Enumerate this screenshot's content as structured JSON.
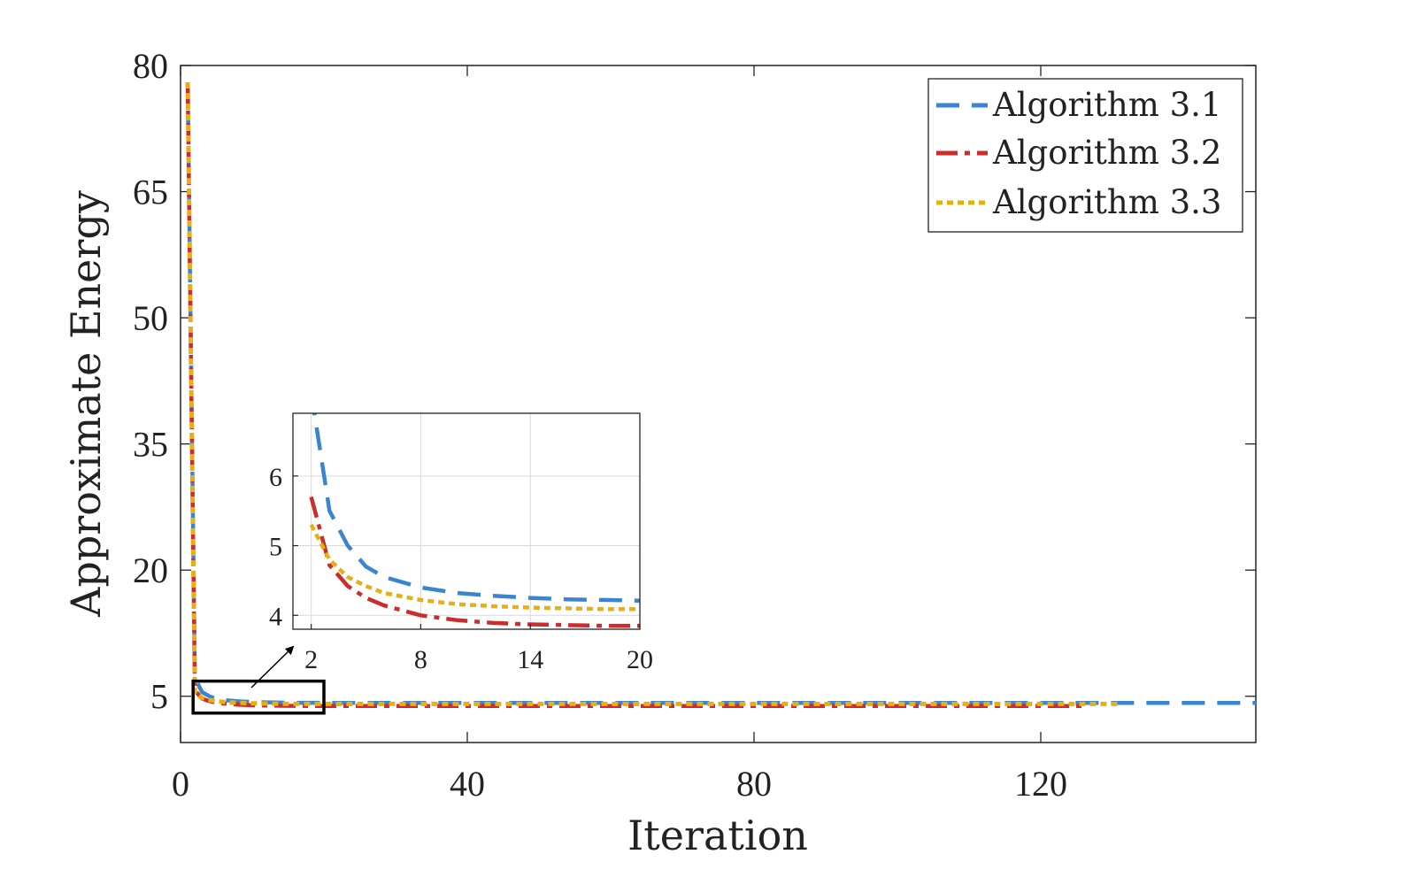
{
  "colors": {
    "series_1": "#3a84d0",
    "series_2": "#cc2c2c",
    "series_3": "#e6b012",
    "axes": "#222222",
    "grid": "#d9d9d9"
  },
  "chart_data": {
    "type": "line",
    "xlabel": "Iteration",
    "ylabel": "Approximate Energy",
    "xlim": [
      0,
      150
    ],
    "ylim": [
      -0.5,
      80
    ],
    "xticks": [
      0,
      40,
      80,
      120
    ],
    "yticks": [
      5,
      20,
      35,
      50,
      65,
      80
    ],
    "legend_position": "top-right",
    "legend_entries": [
      "Algorithm 3.1",
      "Algorithm 3.2",
      "Algorithm 3.3"
    ],
    "series": [
      {
        "name": "Algorithm 3.1",
        "style": "dashed",
        "x": [
          1,
          2,
          3,
          4,
          5,
          6,
          8,
          10,
          12,
          14,
          16,
          18,
          20,
          40,
          80,
          120,
          150
        ],
        "values": [
          78.0,
          7.2,
          5.5,
          5.0,
          4.7,
          4.55,
          4.4,
          4.32,
          4.28,
          4.25,
          4.23,
          4.22,
          4.21,
          4.2,
          4.2,
          4.2,
          4.2
        ]
      },
      {
        "name": "Algorithm 3.2",
        "style": "dash-dot",
        "x": [
          1,
          2,
          3,
          4,
          5,
          6,
          8,
          10,
          12,
          14,
          16,
          18,
          20,
          40,
          80,
          126
        ],
        "values": [
          78.0,
          5.7,
          4.72,
          4.42,
          4.25,
          4.14,
          4.0,
          3.93,
          3.89,
          3.87,
          3.86,
          3.85,
          3.85,
          3.85,
          3.85,
          3.85
        ]
      },
      {
        "name": "Algorithm 3.3",
        "style": "dotted",
        "x": [
          1,
          2,
          3,
          4,
          5,
          6,
          8,
          10,
          12,
          14,
          16,
          18,
          20,
          40,
          80,
          131
        ],
        "values": [
          78.0,
          5.3,
          4.8,
          4.55,
          4.42,
          4.32,
          4.22,
          4.16,
          4.13,
          4.11,
          4.1,
          4.09,
          4.09,
          4.09,
          4.09,
          4.09
        ]
      }
    ],
    "inset": {
      "xlim": [
        1,
        20
      ],
      "ylim": [
        3.8,
        6.9
      ],
      "xticks": [
        2,
        8,
        14,
        20
      ],
      "yticks": [
        4,
        5,
        6
      ],
      "grid": true,
      "zoom_region": {
        "x": [
          2,
          20
        ],
        "y": [
          3.0,
          6.8
        ]
      }
    }
  }
}
